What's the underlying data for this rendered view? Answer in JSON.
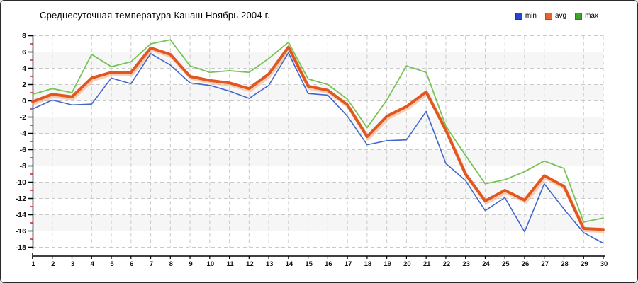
{
  "title": "Среднесуточная температура Канаш  Ноябрь 2004 г.",
  "legend": {
    "items": [
      {
        "label": "min",
        "color": "#2746cf"
      },
      {
        "label": "avg",
        "color": "#e8632c"
      },
      {
        "label": "max",
        "color": "#3fa22a"
      }
    ],
    "position": "top-right"
  },
  "colors": {
    "min_line": "#4166cc",
    "avg_line": "#e2571f",
    "avg_halo": "#f2a97e",
    "max_line": "#76c356",
    "grid": "#c9c9c9",
    "band": "#f6f6f6",
    "axis": "#000000",
    "minor_tick": "#cc0000",
    "label": "#111111"
  },
  "chart_data": {
    "type": "line",
    "title": "Среднесуточная температура Канаш  Ноябрь 2004 г.",
    "xlabel": "",
    "ylabel": "",
    "x": [
      1,
      2,
      3,
      4,
      5,
      6,
      7,
      8,
      9,
      10,
      11,
      12,
      13,
      14,
      15,
      16,
      17,
      18,
      19,
      20,
      21,
      22,
      23,
      24,
      25,
      26,
      27,
      28,
      29,
      30
    ],
    "ylim": [
      -18,
      8
    ],
    "ytick_step": 2,
    "grid": true,
    "banded_rows": true,
    "legend_position": "top-right",
    "series": [
      {
        "name": "min",
        "color": "#4166cc",
        "width": 1.6,
        "values": [
          -1.0,
          0.1,
          -0.5,
          -0.4,
          2.8,
          2.1,
          5.8,
          4.4,
          2.2,
          1.9,
          1.2,
          0.3,
          1.9,
          5.9,
          0.9,
          0.7,
          -1.9,
          -5.4,
          -4.9,
          -4.8,
          -1.3,
          -7.7,
          -9.8,
          -13.5,
          -11.9,
          -16.1,
          -10.2,
          -13.3,
          -16.2,
          -17.5
        ]
      },
      {
        "name": "avg",
        "color": "#e2571f",
        "width": 4,
        "values": [
          -0.1,
          0.8,
          0.5,
          2.8,
          3.5,
          3.5,
          6.5,
          5.7,
          3.0,
          2.5,
          2.2,
          1.5,
          3.3,
          6.6,
          1.8,
          1.3,
          -0.5,
          -4.4,
          -1.9,
          -0.7,
          1.1,
          -3.6,
          -9.0,
          -12.3,
          -11.0,
          -12.2,
          -9.2,
          -10.5,
          -15.7,
          -15.8
        ]
      },
      {
        "name": "max",
        "color": "#76c356",
        "width": 1.8,
        "values": [
          0.8,
          1.5,
          1.0,
          5.7,
          4.2,
          4.8,
          7.0,
          7.5,
          4.3,
          3.5,
          3.7,
          3.5,
          5.2,
          7.2,
          2.7,
          2.0,
          0.2,
          -3.3,
          0.1,
          4.3,
          3.5,
          -3.1,
          -6.7,
          -10.2,
          -9.7,
          -8.7,
          -7.4,
          -8.3,
          -14.9,
          -14.4
        ]
      }
    ]
  }
}
